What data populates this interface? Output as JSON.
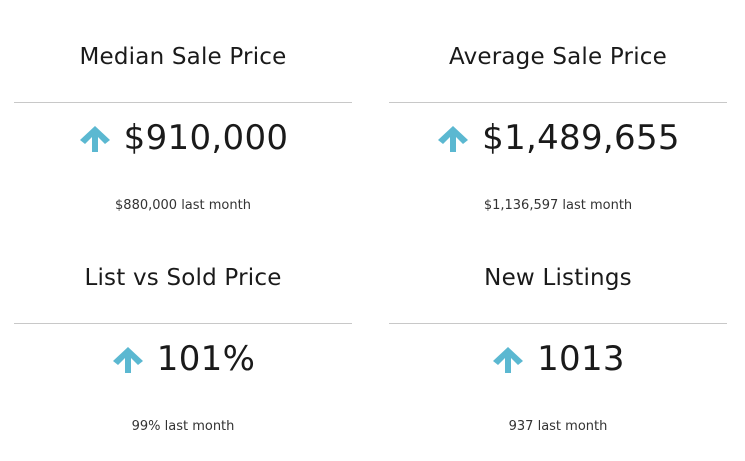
{
  "theme": {
    "arrow_color": "#5bb8d1",
    "divider_color": "#c8c8c8",
    "text_color": "#1a1a1a"
  },
  "stats": [
    {
      "title": "Median Sale Price",
      "value": "$910,000",
      "trend_icon": "arrow-up-icon",
      "previous": "$880,000 last month"
    },
    {
      "title": "Average Sale Price",
      "value": "$1,489,655",
      "trend_icon": "arrow-up-icon",
      "previous": "$1,136,597 last month"
    },
    {
      "title": "List vs Sold Price",
      "value": "101%",
      "trend_icon": "arrow-up-icon",
      "previous": "99% last month"
    },
    {
      "title": "New Listings",
      "value": "1013",
      "trend_icon": "arrow-up-icon",
      "previous": "937 last month"
    }
  ]
}
